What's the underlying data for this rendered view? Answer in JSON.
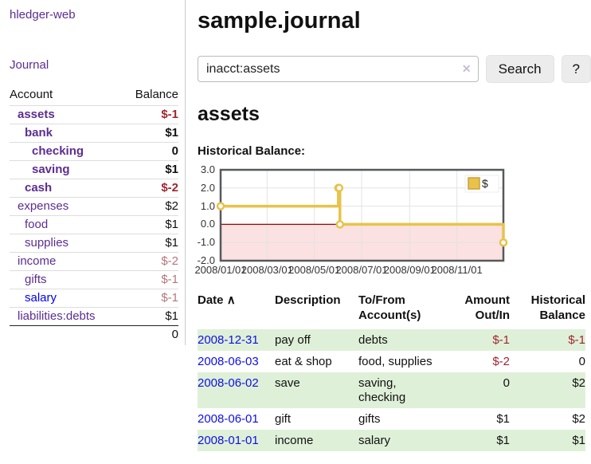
{
  "app": {
    "title": "hledger-web",
    "nav_journal": "Journal"
  },
  "sidebar": {
    "header": {
      "account": "Account",
      "balance": "Balance"
    },
    "accounts": [
      {
        "name": "assets",
        "level": 1,
        "bold": true,
        "balance": "$-1",
        "balance_style": "neg-strong"
      },
      {
        "name": "bank",
        "level": 2,
        "bold": true,
        "balance": "$1",
        "balance_style": "pos"
      },
      {
        "name": "checking",
        "level": 3,
        "bold": true,
        "balance": "0",
        "balance_style": "pos"
      },
      {
        "name": "saving",
        "level": 3,
        "bold": true,
        "balance": "$1",
        "balance_style": "pos"
      },
      {
        "name": "cash",
        "level": 2,
        "bold": true,
        "balance": "$-2",
        "balance_style": "neg-strong"
      },
      {
        "name": "expenses",
        "level": 1,
        "bold": false,
        "balance": "$2",
        "balance_style": "pos"
      },
      {
        "name": "food",
        "level": 2,
        "bold": false,
        "balance": "$1",
        "balance_style": "pos"
      },
      {
        "name": "supplies",
        "level": 2,
        "bold": false,
        "balance": "$1",
        "balance_style": "pos"
      },
      {
        "name": "income",
        "level": 1,
        "bold": false,
        "balance": "$-2",
        "balance_style": "neg-soft"
      },
      {
        "name": "gifts",
        "level": 2,
        "bold": false,
        "balance": "$-1",
        "balance_style": "neg-soft"
      },
      {
        "name": "salary",
        "level": 2,
        "bold": false,
        "link_color": "blue",
        "balance": "$-1",
        "balance_style": "neg-soft"
      },
      {
        "name": "liabilities:debts",
        "level": 1,
        "bold": false,
        "balance": "$1",
        "balance_style": "pos"
      }
    ],
    "total": "0"
  },
  "header": {
    "title": "sample.journal"
  },
  "search": {
    "value": "inacct:assets",
    "clear_icon": "✕",
    "search_button": "Search",
    "help_button": "?"
  },
  "account_page": {
    "heading": "assets",
    "chart_label": "Historical Balance:"
  },
  "chart_data": {
    "type": "line",
    "title": "Historical Balance",
    "step": "after",
    "series": [
      {
        "name": "$",
        "color": "#e8c24a",
        "marker": "open-circle",
        "points": [
          [
            "2008-01-01",
            1.0
          ],
          [
            "2008-06-01",
            2.0
          ],
          [
            "2008-06-02",
            2.0
          ],
          [
            "2008-06-03",
            0.0
          ],
          [
            "2008-12-31",
            -1.0
          ]
        ]
      }
    ],
    "xlim": [
      "2008-01-01",
      "2008-12-31"
    ],
    "ylim": [
      -2.0,
      3.0
    ],
    "x_ticks": [
      "2008/01/01",
      "2008/03/01",
      "2008/05/01",
      "2008/07/01",
      "2008/09/01",
      "2008/11/01"
    ],
    "y_ticks": [
      3.0,
      2.0,
      1.0,
      0.0,
      -1.0,
      -2.0
    ],
    "grid": true,
    "legend": {
      "label": "$",
      "position": "top-right"
    },
    "zero_line_color": "#a00000",
    "negative_region_color": "#fbe1e1",
    "border_color": "#55595c"
  },
  "table": {
    "sort_icon": "∧",
    "headers": [
      {
        "line1": "Date",
        "line2": "",
        "align": "left"
      },
      {
        "line1": "Description",
        "line2": "",
        "align": "left"
      },
      {
        "line1": "To/From",
        "line2": "Account(s)",
        "align": "left"
      },
      {
        "line1": "Amount",
        "line2": "Out/In",
        "align": "right"
      },
      {
        "line1": "Historical",
        "line2": "Balance",
        "align": "right"
      }
    ],
    "rows": [
      {
        "date": "2008-12-31",
        "description": "pay off",
        "accounts": "debts",
        "amount": "$-1",
        "amount_neg": true,
        "balance": "$-1",
        "balance_neg": true,
        "highlight": true
      },
      {
        "date": "2008-06-03",
        "description": "eat & shop",
        "accounts": "food, supplies",
        "amount": "$-2",
        "amount_neg": true,
        "balance": "0",
        "balance_neg": false,
        "highlight": false
      },
      {
        "date": "2008-06-02",
        "description": "save",
        "accounts": "saving, checking",
        "amount": "0",
        "amount_neg": false,
        "balance": "$2",
        "balance_neg": false,
        "highlight": true
      },
      {
        "date": "2008-06-01",
        "description": "gift",
        "accounts": "gifts",
        "amount": "$1",
        "amount_neg": false,
        "balance": "$2",
        "balance_neg": false,
        "highlight": false
      },
      {
        "date": "2008-01-01",
        "description": "income",
        "accounts": "salary",
        "amount": "$1",
        "amount_neg": false,
        "balance": "$1",
        "balance_neg": false,
        "highlight": true
      }
    ]
  }
}
